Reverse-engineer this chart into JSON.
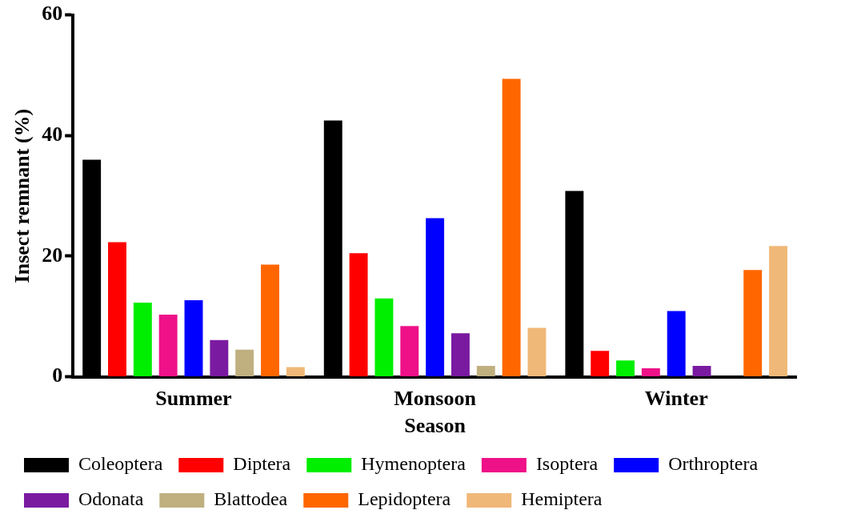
{
  "chart_data": {
    "type": "bar",
    "xlabel": "Season",
    "ylabel": "Insect remnant (%)",
    "categories": [
      "Summer",
      "Monsoon",
      "Winter"
    ],
    "ylim": [
      0,
      60
    ],
    "yticks": [
      0,
      20,
      40,
      60
    ],
    "grid": false,
    "legend": "bottom",
    "series": [
      {
        "name": "Coleoptera",
        "color": "#000000",
        "values": [
          36,
          42.5,
          30.8
        ]
      },
      {
        "name": "Diptera",
        "color": "#ff0000",
        "values": [
          22.3,
          20.5,
          4.3
        ]
      },
      {
        "name": "Hymenoptera",
        "color": "#00ee00",
        "values": [
          12.3,
          13,
          2.7
        ]
      },
      {
        "name": "Isoptera",
        "color": "#ee1188",
        "values": [
          10.3,
          8.4,
          1.4
        ]
      },
      {
        "name": "Orthroptera",
        "color": "#0000ff",
        "values": [
          12.7,
          26.3,
          10.9
        ]
      },
      {
        "name": "Odonata",
        "color": "#7a1aa0",
        "values": [
          6.1,
          7.2,
          1.8
        ]
      },
      {
        "name": "Blattodea",
        "color": "#c0b080",
        "values": [
          4.5,
          1.8,
          null
        ]
      },
      {
        "name": "Lepidoptera",
        "color": "#ff6600",
        "values": [
          18.6,
          49.4,
          17.7
        ]
      },
      {
        "name": "Hemiptera",
        "color": "#f0b878",
        "values": [
          1.6,
          8.1,
          21.7
        ]
      }
    ]
  }
}
